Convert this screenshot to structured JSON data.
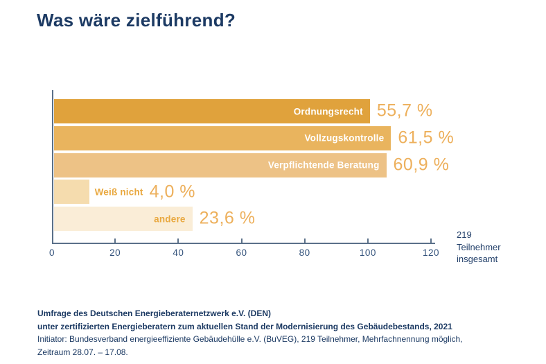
{
  "title": "Was wäre zielführend?",
  "chart_data": {
    "type": "bar",
    "orientation": "horizontal",
    "title": "Was wäre zielführend?",
    "xlim": [
      0,
      120
    ],
    "x_ticks": [
      0,
      20,
      40,
      60,
      80,
      100,
      120
    ],
    "grid": false,
    "legend": false,
    "categories": [
      "Ordnungsrecht",
      "Vollzugskontrolle",
      "Verpflichtende Beratung",
      "Weiß nicht",
      "andere"
    ],
    "values_percent": [
      55.7,
      61.5,
      60.9,
      4.0,
      23.6
    ],
    "value_labels": [
      "55,7 %",
      "61,5 %",
      "60,9 %",
      "4,0 %",
      "23,6 %"
    ],
    "bars": [
      {
        "label": "Ordnungsrecht",
        "percent": 55.7,
        "display": "55,7 %",
        "axis_units": 100.0,
        "color": "#e0a23c",
        "label_inside": true,
        "label_color": "#ffffff"
      },
      {
        "label": "Vollzugskontrolle",
        "percent": 61.5,
        "display": "61,5 %",
        "axis_units": 106.7,
        "color": "#e9b45e",
        "label_inside": true,
        "label_color": "#ffffff"
      },
      {
        "label": "Verpflichtende Beratung",
        "percent": 60.9,
        "display": "60,9 %",
        "axis_units": 105.2,
        "color": "#edc286",
        "label_inside": true,
        "label_color": "#ffffff"
      },
      {
        "label": "Weiß nicht",
        "percent": 4.0,
        "display": "4,0 %",
        "axis_units": 11.1,
        "color": "#f5dcae",
        "label_inside": false,
        "label_color": "#e9a83f"
      },
      {
        "label": "andere",
        "percent": 23.6,
        "display": "23,6 %",
        "axis_units": 43.8,
        "color": "#faedd7",
        "label_inside": true,
        "label_color": "#e9a83f"
      }
    ],
    "value_color": "#edb05c",
    "axis_color": "#5a7089",
    "note_lines": [
      "219",
      "Teilnehmer",
      "insgesamt"
    ]
  },
  "footer": {
    "line1": "Umfrage des Deutschen Energieberaternetzwerk e.V. (DEN)",
    "line2": "unter zertifizierten Energieberatern zum aktuellen Stand der Modernisierung des Gebäudebestands, 2021",
    "line3": "Initiator: Bundesverband energieeffiziente Gebäudehülle e.V. (BuVEG), 219 Teilnehmer, Mehrfachnennung möglich,",
    "line4": "Zeitraum 28.07. – 17.08."
  },
  "colors": {
    "navy": "#1c3a63",
    "orange_label": "#e9a83f",
    "value_orange": "#edb05c"
  }
}
